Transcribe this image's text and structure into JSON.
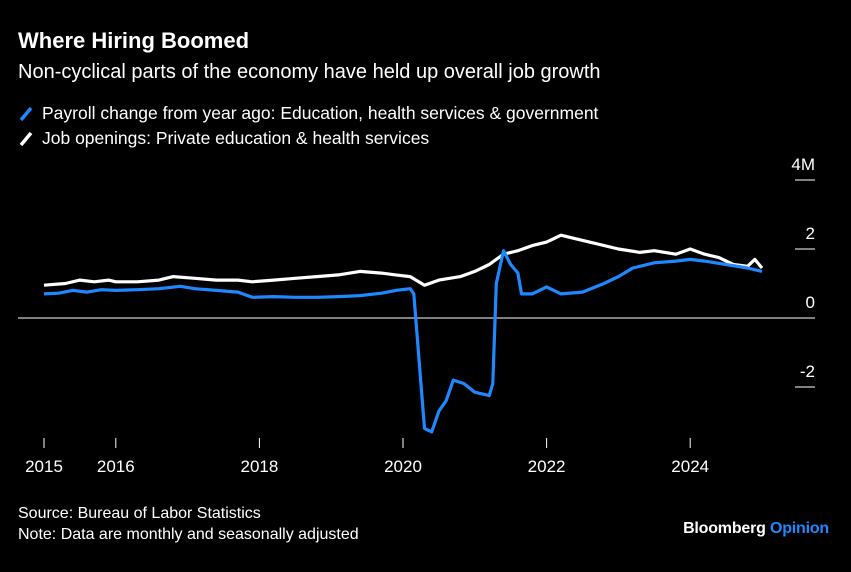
{
  "title": "Where Hiring Boomed",
  "subtitle": "Non-cyclical parts of the economy have held up overall job growth",
  "footer": {
    "source": "Source: Bureau of Labor Statistics",
    "note": "Note: Data are monthly and seasonally adjusted"
  },
  "brand": {
    "name": "Bloomberg",
    "suffix": "Opinion"
  },
  "colors": {
    "background": "#000000",
    "payroll": "#1e88ff",
    "openings": "#ffffff"
  },
  "chart_data": {
    "type": "line",
    "y_axis": {
      "position": "right",
      "min": -4.2,
      "max": 4.0,
      "ticks": [
        -2,
        0,
        2,
        4
      ],
      "tick_labels": [
        "-2",
        "0",
        "2",
        "4M"
      ]
    },
    "x_axis": {
      "min": 2015,
      "max": 2025,
      "tick_labels": [
        "2015",
        "2016",
        "2018",
        "2020",
        "2022",
        "2024"
      ],
      "tick_values": [
        2015,
        2016,
        2018,
        2020,
        2022,
        2024
      ]
    },
    "legend_position": "top-left",
    "series": [
      {
        "name": "Payroll change from year ago: Education, health services & government",
        "color": "#1e88ff",
        "points": [
          [
            2015.0,
            0.7
          ],
          [
            2015.2,
            0.72
          ],
          [
            2015.4,
            0.8
          ],
          [
            2015.6,
            0.75
          ],
          [
            2015.8,
            0.82
          ],
          [
            2016.0,
            0.8
          ],
          [
            2016.3,
            0.82
          ],
          [
            2016.6,
            0.85
          ],
          [
            2016.9,
            0.92
          ],
          [
            2017.1,
            0.85
          ],
          [
            2017.4,
            0.8
          ],
          [
            2017.7,
            0.75
          ],
          [
            2017.9,
            0.6
          ],
          [
            2018.2,
            0.62
          ],
          [
            2018.5,
            0.6
          ],
          [
            2018.8,
            0.6
          ],
          [
            2019.1,
            0.62
          ],
          [
            2019.4,
            0.65
          ],
          [
            2019.7,
            0.72
          ],
          [
            2019.9,
            0.8
          ],
          [
            2020.1,
            0.85
          ],
          [
            2020.15,
            0.7
          ],
          [
            2020.3,
            -3.2
          ],
          [
            2020.4,
            -3.3
          ],
          [
            2020.5,
            -2.7
          ],
          [
            2020.6,
            -2.4
          ],
          [
            2020.7,
            -1.8
          ],
          [
            2020.85,
            -1.9
          ],
          [
            2021.0,
            -2.15
          ],
          [
            2021.2,
            -2.25
          ],
          [
            2021.25,
            -1.9
          ],
          [
            2021.3,
            1.0
          ],
          [
            2021.4,
            1.95
          ],
          [
            2021.5,
            1.55
          ],
          [
            2021.6,
            1.3
          ],
          [
            2021.65,
            0.7
          ],
          [
            2021.8,
            0.7
          ],
          [
            2022.0,
            0.9
          ],
          [
            2022.1,
            0.8
          ],
          [
            2022.2,
            0.7
          ],
          [
            2022.5,
            0.75
          ],
          [
            2022.8,
            1.0
          ],
          [
            2023.0,
            1.2
          ],
          [
            2023.2,
            1.45
          ],
          [
            2023.5,
            1.6
          ],
          [
            2023.8,
            1.65
          ],
          [
            2024.0,
            1.7
          ],
          [
            2024.2,
            1.65
          ],
          [
            2024.5,
            1.55
          ],
          [
            2024.8,
            1.45
          ],
          [
            2025.0,
            1.35
          ]
        ]
      },
      {
        "name": "Job openings: Private education & health services",
        "color": "#ffffff",
        "points": [
          [
            2015.0,
            0.95
          ],
          [
            2015.3,
            1.0
          ],
          [
            2015.5,
            1.1
          ],
          [
            2015.7,
            1.05
          ],
          [
            2015.9,
            1.1
          ],
          [
            2016.0,
            1.05
          ],
          [
            2016.3,
            1.05
          ],
          [
            2016.6,
            1.1
          ],
          [
            2016.8,
            1.2
          ],
          [
            2017.1,
            1.15
          ],
          [
            2017.4,
            1.1
          ],
          [
            2017.7,
            1.1
          ],
          [
            2017.9,
            1.05
          ],
          [
            2018.2,
            1.1
          ],
          [
            2018.5,
            1.15
          ],
          [
            2018.8,
            1.2
          ],
          [
            2019.1,
            1.25
          ],
          [
            2019.4,
            1.35
          ],
          [
            2019.7,
            1.3
          ],
          [
            2019.9,
            1.25
          ],
          [
            2020.1,
            1.2
          ],
          [
            2020.3,
            0.95
          ],
          [
            2020.5,
            1.1
          ],
          [
            2020.8,
            1.2
          ],
          [
            2021.0,
            1.35
          ],
          [
            2021.2,
            1.55
          ],
          [
            2021.4,
            1.85
          ],
          [
            2021.6,
            1.95
          ],
          [
            2021.8,
            2.1
          ],
          [
            2022.0,
            2.2
          ],
          [
            2022.2,
            2.4
          ],
          [
            2022.4,
            2.3
          ],
          [
            2022.7,
            2.15
          ],
          [
            2023.0,
            2.0
          ],
          [
            2023.3,
            1.9
          ],
          [
            2023.5,
            1.95
          ],
          [
            2023.8,
            1.85
          ],
          [
            2024.0,
            2.0
          ],
          [
            2024.2,
            1.85
          ],
          [
            2024.4,
            1.75
          ],
          [
            2024.6,
            1.55
          ],
          [
            2024.8,
            1.5
          ],
          [
            2024.9,
            1.7
          ],
          [
            2025.0,
            1.45
          ]
        ]
      }
    ]
  }
}
